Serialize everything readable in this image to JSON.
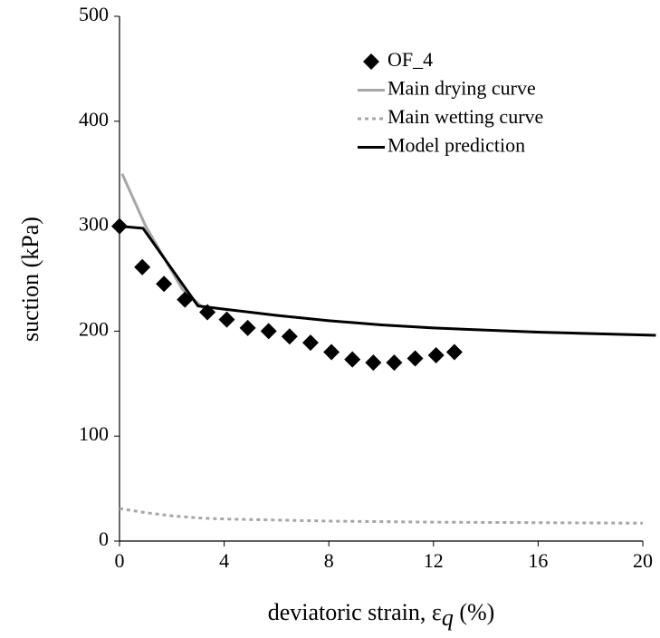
{
  "chart_data": {
    "type": "combo",
    "ylabel": "suction (kPa)",
    "xlabel": [
      "deviatoric strain, ε",
      "q",
      " (%)"
    ],
    "xlim": [
      0,
      20
    ],
    "xticks": [
      0,
      4,
      8,
      12,
      16,
      20
    ],
    "ylim": [
      0,
      500
    ],
    "yticks": [
      0,
      100,
      200,
      300,
      400,
      500
    ],
    "grid": false,
    "legend": "upper right",
    "series": [
      {
        "name": "OF_4",
        "type": "scatter",
        "color": "#000000",
        "x": [
          0,
          0.87,
          1.7,
          2.5,
          3.36,
          4.1,
          4.9,
          5.7,
          6.5,
          7.3,
          8.1,
          8.9,
          9.7,
          10.5,
          11.3,
          12.1,
          12.8
        ],
        "values": [
          300,
          261,
          245,
          230,
          218,
          211,
          203,
          200,
          195,
          189,
          180,
          173,
          170,
          170,
          174,
          177,
          180
        ]
      },
      {
        "name": "Main drying curve",
        "type": "line",
        "color": "#a6a6a6",
        "linestyle": "solid",
        "x": [
          0.1,
          1,
          2.4,
          3.2
        ],
        "values": [
          350,
          300,
          240,
          222
        ]
      },
      {
        "name": "Main wetting curve",
        "type": "line",
        "color": "#a6a6a6",
        "linestyle": "dotted",
        "x": [
          0,
          1,
          2,
          3,
          4,
          6,
          8,
          12,
          16,
          20
        ],
        "values": [
          31,
          27,
          24,
          22,
          21,
          20,
          19,
          18,
          17.5,
          17
        ]
      },
      {
        "name": "Model prediction",
        "type": "line",
        "color": "#000000",
        "linestyle": "solid",
        "x": [
          0,
          0.9,
          2.4,
          3,
          4,
          6,
          8,
          10,
          12,
          16,
          20.5
        ],
        "values": [
          300,
          298,
          245,
          224,
          221,
          215,
          210,
          206,
          203,
          199,
          196
        ]
      }
    ]
  }
}
